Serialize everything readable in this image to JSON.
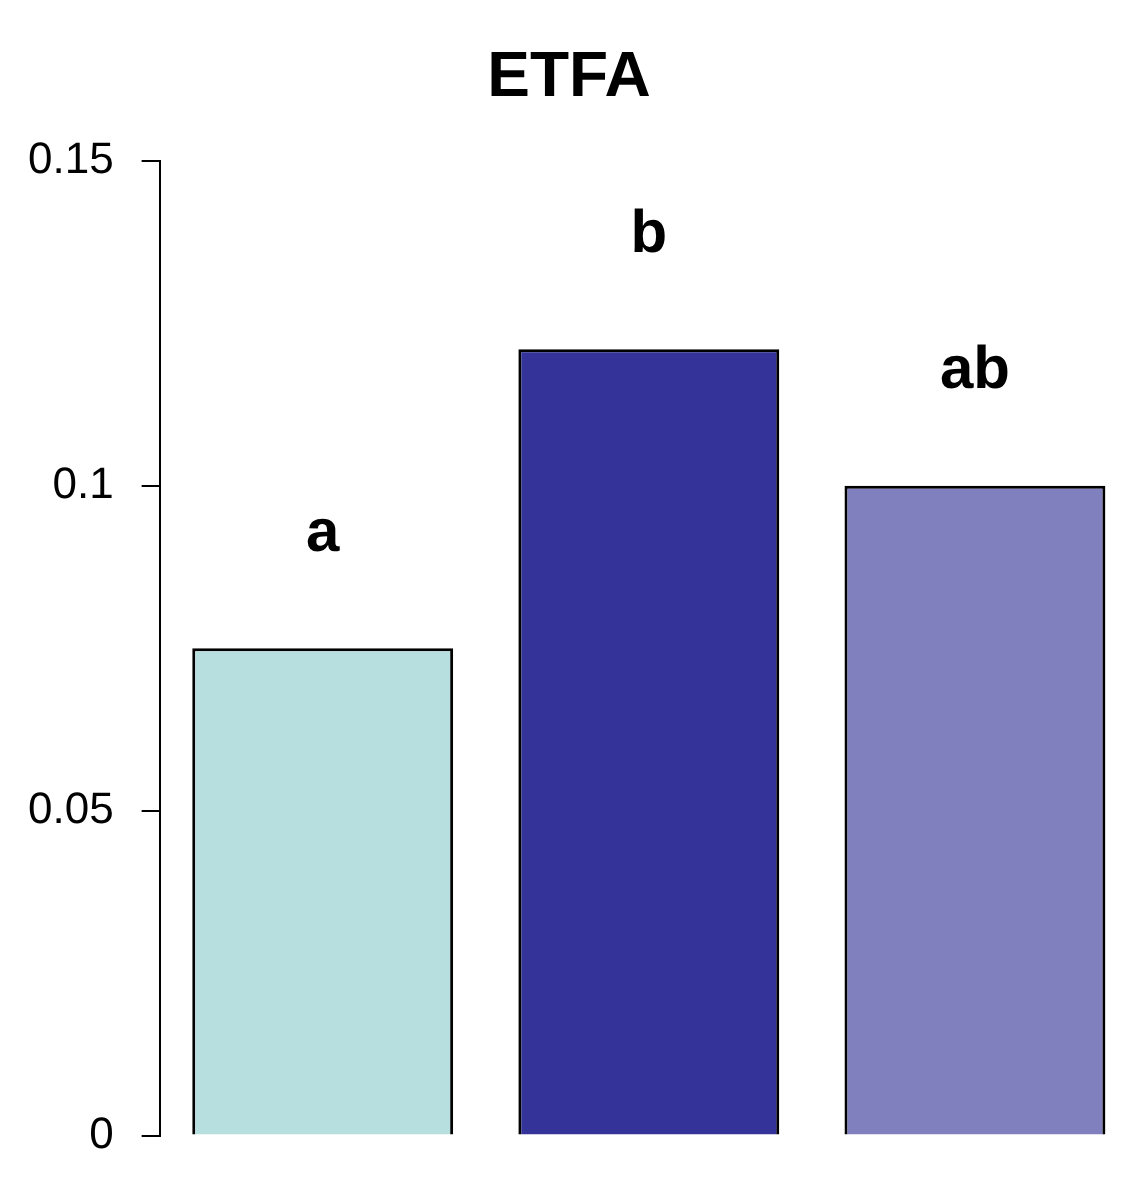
{
  "chart_data": {
    "type": "bar",
    "title": "ETFA",
    "categories": [
      null,
      null,
      null
    ],
    "values": [
      0.075,
      0.121,
      0.1
    ],
    "colors": [
      "#b8dfe0",
      "#333399",
      "#8080bf"
    ],
    "ylim": [
      0,
      0.15
    ],
    "yticks": [
      0,
      0.05,
      0.1,
      0.15
    ],
    "grid": false,
    "legend": false,
    "annotations": [
      "a",
      "b",
      "ab"
    ]
  }
}
